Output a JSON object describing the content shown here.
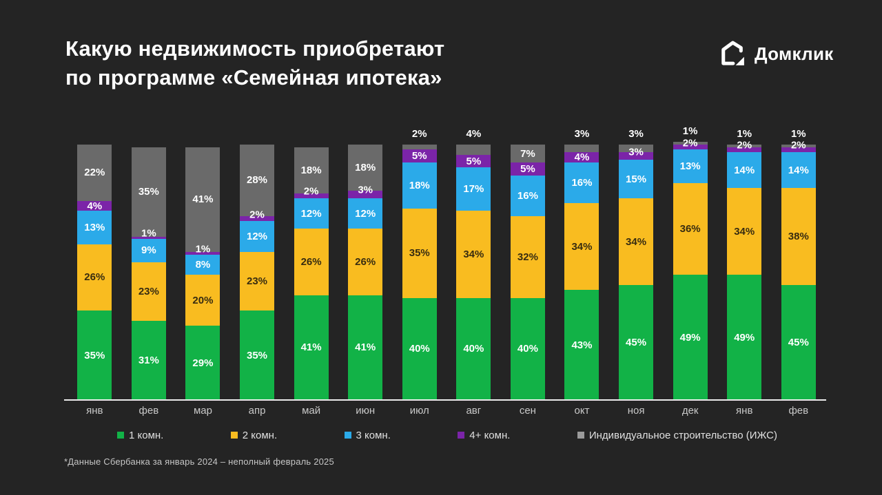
{
  "page": {
    "background": "#242424",
    "title_line1": "Какую недвижимость приобретают",
    "title_line2": "по программе «Семейная ипотека»",
    "footnote": "*Данные Сбербанка за январь 2024 – неполный февраль 2025"
  },
  "logo": {
    "text": "Домклик",
    "icon": "domclick-house-icon",
    "color": "#FFFFFF"
  },
  "chart_data": {
    "type": "bar",
    "stacked": true,
    "value_unit": "%",
    "title": "Какую недвижимость приобретают по программе «Семейная ипотека»",
    "categories": [
      "янв",
      "фев",
      "мар",
      "апр",
      "май",
      "июн",
      "июл",
      "авг",
      "сен",
      "окт",
      "ноя",
      "дек",
      "янв",
      "фев"
    ],
    "series": [
      {
        "key": "rooms-1",
        "name": "1 комн.",
        "color": "#12B247",
        "label_color": "#FFFFFF",
        "values": [
          35,
          31,
          29,
          35,
          41,
          41,
          40,
          40,
          40,
          43,
          45,
          49,
          49,
          45
        ]
      },
      {
        "key": "rooms-2",
        "name": "2 комн.",
        "color": "#F9BC20",
        "label_color": "#382C10",
        "values": [
          26,
          23,
          20,
          23,
          26,
          26,
          35,
          34,
          32,
          34,
          34,
          36,
          34,
          38
        ]
      },
      {
        "key": "rooms-3",
        "name": "3 комн.",
        "color": "#2BAAE9",
        "label_color": "#FFFFFF",
        "values": [
          13,
          9,
          8,
          12,
          12,
          12,
          18,
          17,
          16,
          16,
          15,
          13,
          14,
          14
        ]
      },
      {
        "key": "rooms-4plus",
        "name": "4+ комн.",
        "color": "#7B24A8",
        "label_color": "#FFFFFF",
        "values": [
          4,
          1,
          1,
          2,
          2,
          3,
          5,
          5,
          5,
          4,
          3,
          2,
          2,
          2
        ]
      },
      {
        "key": "izhs",
        "name": "Индивидуальное строительство (ИЖС)",
        "color": "#6A6A6A",
        "label_color": "#FFFFFF",
        "legend_swatch_color": "#9A9A9A",
        "values": [
          22,
          35,
          41,
          28,
          18,
          18,
          2,
          4,
          7,
          3,
          3,
          1,
          1,
          1
        ]
      }
    ],
    "legend_position": "bottom",
    "ylim": [
      0,
      100
    ],
    "grid": false,
    "axis_line_color": "#ECECEC"
  }
}
